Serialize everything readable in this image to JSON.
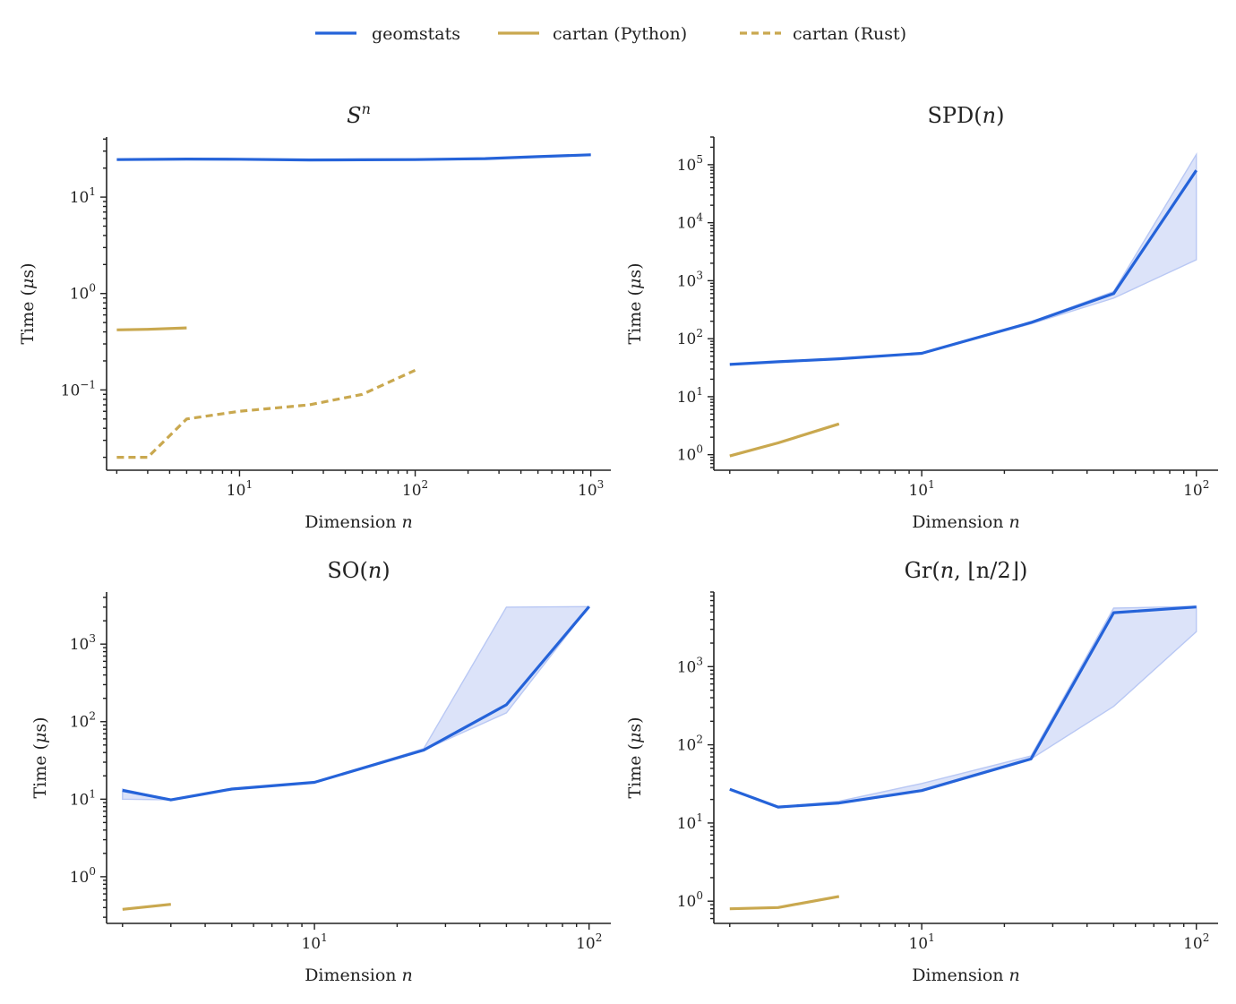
{
  "legend": {
    "items": [
      {
        "name": "geomstats",
        "color": "#2563d9",
        "dash": false
      },
      {
        "name": "cartan (Python)",
        "color": "#c9a84f",
        "dash": false
      },
      {
        "name": "cartan (Rust)",
        "color": "#c9a84f",
        "dash": true
      }
    ]
  },
  "colors": {
    "geomstats": "#2563d9",
    "band": "#b9c8f4",
    "cartan": "#c9a84f"
  },
  "chart_data": [
    {
      "type": "line",
      "title_base": "S",
      "title_sup": "n",
      "title_rest": "",
      "xlabel_text": "Dimension",
      "xlabel_var": "n",
      "ylabel_text": "Time (",
      "ylabel_var": "μ",
      "ylabel_unit": "s)",
      "xscale": "log",
      "yscale": "log",
      "xlim": [
        1.75,
        1300
      ],
      "ylim": [
        0.0147,
        42
      ],
      "x_ticks": [
        {
          "base": "10",
          "exp": "1",
          "value": 10
        },
        {
          "base": "10",
          "exp": "2",
          "value": 100
        },
        {
          "base": "10",
          "exp": "3",
          "value": 1000
        }
      ],
      "y_ticks": [
        {
          "base": "10",
          "exp": "−1",
          "value": 0.1
        },
        {
          "base": "10",
          "exp": "0",
          "value": 1
        },
        {
          "base": "10",
          "exp": "1",
          "value": 10
        }
      ],
      "series": [
        {
          "name": "geomstats",
          "style": "solid",
          "x": [
            2,
            5,
            10,
            25,
            50,
            100,
            250,
            500,
            1000
          ],
          "y": [
            24.5,
            24.8,
            24.7,
            24.3,
            24.4,
            24.5,
            25.1,
            26.3,
            27.5
          ]
        },
        {
          "name": "cartan (Python)",
          "style": "solid",
          "x": [
            2,
            3,
            5
          ],
          "y": [
            0.42,
            0.425,
            0.44
          ]
        },
        {
          "name": "cartan (Rust)",
          "style": "dashed",
          "x": [
            2,
            3,
            5,
            10,
            25,
            50,
            100
          ],
          "y": [
            0.02,
            0.02,
            0.05,
            0.06,
            0.07,
            0.09,
            0.16
          ]
        }
      ],
      "bands": []
    },
    {
      "type": "line",
      "title_base": "SPD(",
      "title_sup": "",
      "title_var": "n",
      "title_rest": ")",
      "xlabel_text": "Dimension",
      "xlabel_var": "n",
      "ylabel_text": "Time (",
      "ylabel_var": "μ",
      "ylabel_unit": "s)",
      "xscale": "log",
      "yscale": "log",
      "xlim": [
        1.75,
        120
      ],
      "ylim": [
        0.54,
        300000
      ],
      "x_ticks": [
        {
          "base": "10",
          "exp": "1",
          "value": 10
        },
        {
          "base": "10",
          "exp": "2",
          "value": 100
        }
      ],
      "y_ticks": [
        {
          "base": "10",
          "exp": "0",
          "value": 1
        },
        {
          "base": "10",
          "exp": "1",
          "value": 10
        },
        {
          "base": "10",
          "exp": "2",
          "value": 100
        },
        {
          "base": "10",
          "exp": "3",
          "value": 1000
        },
        {
          "base": "10",
          "exp": "4",
          "value": 10000
        },
        {
          "base": "10",
          "exp": "5",
          "value": 100000
        }
      ],
      "series": [
        {
          "name": "geomstats",
          "style": "solid",
          "x": [
            2,
            3,
            5,
            10,
            25,
            50,
            100
          ],
          "y": [
            36,
            40,
            45,
            56,
            190,
            600,
            80000
          ]
        },
        {
          "name": "cartan (Python)",
          "style": "solid",
          "x": [
            2,
            3,
            5
          ],
          "y": [
            0.95,
            1.6,
            3.4
          ]
        }
      ],
      "bands": [
        {
          "name": "geomstats",
          "x": [
            2,
            3,
            5,
            10,
            25,
            50,
            100
          ],
          "lower": [
            36,
            40,
            45,
            56,
            180,
            500,
            2300
          ],
          "upper": [
            36,
            40,
            45,
            56,
            195,
            650,
            150000
          ]
        }
      ]
    },
    {
      "type": "line",
      "title_base": "SO(",
      "title_sup": "",
      "title_var": "n",
      "title_rest": ")",
      "xlabel_text": "Dimension",
      "xlabel_var": "n",
      "ylabel_text": "Time (",
      "ylabel_var": "μ",
      "ylabel_unit": "s)",
      "xscale": "log",
      "yscale": "log",
      "xlim": [
        1.75,
        120
      ],
      "ylim": [
        0.25,
        4700
      ],
      "x_ticks": [
        {
          "base": "10",
          "exp": "1",
          "value": 10
        },
        {
          "base": "10",
          "exp": "2",
          "value": 100
        }
      ],
      "y_ticks": [
        {
          "base": "10",
          "exp": "0",
          "value": 1
        },
        {
          "base": "10",
          "exp": "1",
          "value": 10
        },
        {
          "base": "10",
          "exp": "2",
          "value": 100
        },
        {
          "base": "10",
          "exp": "3",
          "value": 1000
        }
      ],
      "series": [
        {
          "name": "geomstats",
          "style": "solid",
          "x": [
            2,
            3,
            5,
            10,
            25,
            50,
            100
          ],
          "y": [
            13,
            9.8,
            13.5,
            16.5,
            43,
            165,
            3050
          ]
        },
        {
          "name": "cartan (Python)",
          "style": "solid",
          "x": [
            2,
            3
          ],
          "y": [
            0.38,
            0.44
          ]
        }
      ],
      "bands": [
        {
          "name": "geomstats",
          "x": [
            2,
            3,
            5,
            10,
            25,
            50,
            100
          ],
          "lower": [
            10,
            9.8,
            13.5,
            16.5,
            43,
            130,
            3050
          ],
          "upper": [
            13.5,
            9.8,
            13.5,
            16.5,
            45,
            3000,
            3050
          ]
        }
      ]
    },
    {
      "type": "line",
      "title_base": "Gr(",
      "title_sup": "",
      "title_var": "n",
      "title_rest": ", ⌊n/2⌋)",
      "xlabel_text": "Dimension",
      "xlabel_var": "n",
      "ylabel_text": "Time (",
      "ylabel_var": "μ",
      "ylabel_unit": "s)",
      "xscale": "log",
      "yscale": "log",
      "xlim": [
        1.75,
        120
      ],
      "ylim": [
        0.52,
        9000
      ],
      "x_ticks": [
        {
          "base": "10",
          "exp": "1",
          "value": 10
        },
        {
          "base": "10",
          "exp": "2",
          "value": 100
        }
      ],
      "y_ticks": [
        {
          "base": "10",
          "exp": "0",
          "value": 1
        },
        {
          "base": "10",
          "exp": "1",
          "value": 10
        },
        {
          "base": "10",
          "exp": "2",
          "value": 100
        },
        {
          "base": "10",
          "exp": "3",
          "value": 1000
        }
      ],
      "series": [
        {
          "name": "geomstats",
          "style": "solid",
          "x": [
            2,
            3,
            5,
            10,
            25,
            50,
            100
          ],
          "y": [
            27,
            16,
            18,
            26,
            66,
            4900,
            5800
          ]
        },
        {
          "name": "cartan (Python)",
          "style": "solid",
          "x": [
            2,
            3,
            5
          ],
          "y": [
            0.8,
            0.83,
            1.15
          ]
        }
      ],
      "bands": [
        {
          "name": "geomstats",
          "x": [
            2,
            3,
            5,
            10,
            25,
            50,
            100
          ],
          "lower": [
            27,
            16,
            18,
            26,
            66,
            310,
            2800
          ],
          "upper": [
            27,
            16,
            19,
            32,
            72,
            5600,
            5900
          ]
        }
      ]
    }
  ]
}
